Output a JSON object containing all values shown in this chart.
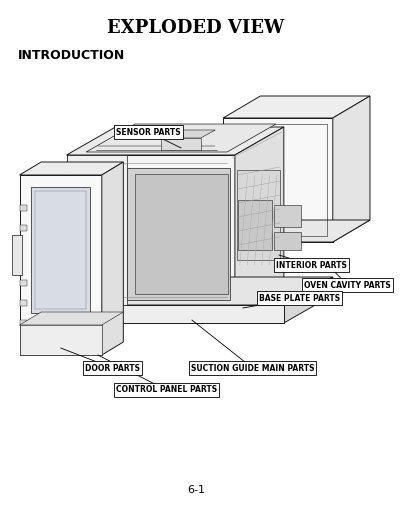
{
  "title": "EXPLODED VIEW",
  "subtitle": "INTRODUCTION",
  "page_number": "6-1",
  "background_color": "#ffffff",
  "title_fontsize": 13,
  "subtitle_fontsize": 9,
  "page_num_fontsize": 8,
  "label_fontsize": 5.5,
  "line_color": "#1a1a1a",
  "face_white": "#ffffff",
  "face_light": "#f0f0f0",
  "face_mid": "#e0e0e0",
  "face_dark": "#c8c8c8"
}
